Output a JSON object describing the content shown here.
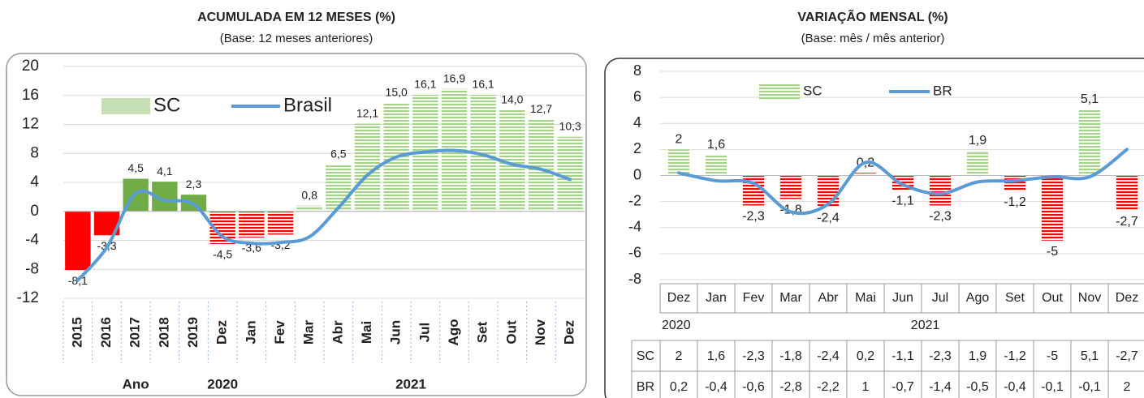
{
  "chart_data": [
    {
      "type": "bar",
      "title": "ACUMULADA EM 12 MESES (%)",
      "subtitle": "(Base: 12 meses anteriores)",
      "categories": [
        "2015",
        "2016",
        "2017",
        "2018",
        "2019",
        "Dez",
        "Jan",
        "Fev",
        "Mar",
        "Abr",
        "Mai",
        "Jun",
        "Jul",
        "Ago",
        "Set",
        "Out",
        "Nov",
        "Dez"
      ],
      "groups": [
        "Ano",
        "2020",
        "2021"
      ],
      "series": [
        {
          "name": "SC",
          "type": "bar",
          "color": "#c5e0b4",
          "colors": [
            "#ff0000",
            "#ff0000",
            "#70ad47",
            "#70ad47",
            "#70ad47",
            "#ff0000",
            "#ff0000",
            "#ff0000",
            "#a9d18e",
            "#a9d18e",
            "#a9d18e",
            "#a9d18e",
            "#a9d18e",
            "#a9d18e",
            "#a9d18e",
            "#a9d18e",
            "#a9d18e",
            "#a9d18e"
          ],
          "hatched": [
            false,
            false,
            false,
            false,
            false,
            true,
            true,
            true,
            true,
            true,
            true,
            true,
            true,
            true,
            true,
            true,
            true,
            true
          ],
          "values": [
            -8.1,
            -3.3,
            4.5,
            4.1,
            2.3,
            -4.5,
            -3.6,
            -3.2,
            0.8,
            6.5,
            12.1,
            15.0,
            16.1,
            16.9,
            16.1,
            14.0,
            12.7,
            10.3
          ],
          "value_labels": [
            "-8,1",
            "-3,3",
            "4,5",
            "4,1",
            "2,3",
            "-4,5",
            "-3,6",
            "-3,2",
            "0,8",
            "6,5",
            "12,1",
            "15,0",
            "16,1",
            "16,9",
            "16,1",
            "14,0",
            "12,7",
            "10,3"
          ]
        },
        {
          "name": "Brasil",
          "type": "line",
          "color": "#5b9bd5",
          "values": [
            -9.5,
            -5,
            2.5,
            1.5,
            1,
            -3.5,
            -4.4,
            -4.3,
            -3.5,
            0.5,
            5,
            7.5,
            8.2,
            8.4,
            7.8,
            6.5,
            5.8,
            4.4
          ]
        }
      ],
      "ylim": [
        -12,
        20
      ],
      "yticks": [
        -12,
        -8,
        -4,
        0,
        4,
        8,
        12,
        16,
        20
      ],
      "grid": true,
      "legend": "upper left"
    },
    {
      "type": "bar",
      "title": "VARIAÇÃO MENSAL (%)",
      "subtitle": "(Base: mês / mês anterior)",
      "categories": [
        "Dez",
        "Jan",
        "Fev",
        "Mar",
        "Abr",
        "Mai",
        "Jun",
        "Jul",
        "Ago",
        "Set",
        "Out",
        "Nov",
        "Dez"
      ],
      "groups": [
        "2020",
        "2021"
      ],
      "series": [
        {
          "name": "SC",
          "type": "bar",
          "color": "#a9d18e",
          "colors": [
            "#a9d18e",
            "#a9d18e",
            "#ff0000",
            "#ff0000",
            "#ff0000",
            "#ff0000",
            "#ff0000",
            "#ff0000",
            "#a9d18e",
            "#ff0000",
            "#ff0000",
            "#a9d18e",
            "#ff0000"
          ],
          "hatched": [
            true,
            true,
            true,
            true,
            true,
            true,
            true,
            true,
            true,
            true,
            true,
            true,
            true
          ],
          "values": [
            2,
            1.6,
            -2.3,
            -1.8,
            -2.4,
            0.2,
            -1.1,
            -2.3,
            1.9,
            -1.2,
            -5,
            5.1,
            -2.7
          ],
          "value_labels": [
            "2",
            "1,6",
            "-2,3",
            "-1,8",
            "-2,4",
            "0,2",
            "-1,1",
            "-2,3",
            "1,9",
            "-1,2",
            "-5",
            "5,1",
            "-2,7"
          ]
        },
        {
          "name": "BR",
          "type": "line",
          "color": "#5b9bd5",
          "values": [
            0.2,
            -0.4,
            -0.6,
            -2.8,
            -2.2,
            1,
            -0.7,
            -1.4,
            -0.5,
            -0.4,
            -0.1,
            -0.1,
            2
          ],
          "value_labels": [
            "0,2",
            "-0,4",
            "-0,6",
            "-2,8",
            "-2,2",
            "1",
            "-0,7",
            "-1,4",
            "-0,5",
            "-0,4",
            "-0,1",
            "-0,1",
            "2"
          ]
        }
      ],
      "ylim": [
        -8,
        8
      ],
      "yticks": [
        -8,
        -6,
        -4,
        -2,
        0,
        2,
        4,
        6,
        8
      ],
      "grid": true,
      "legend": "upper center",
      "table": true
    }
  ]
}
